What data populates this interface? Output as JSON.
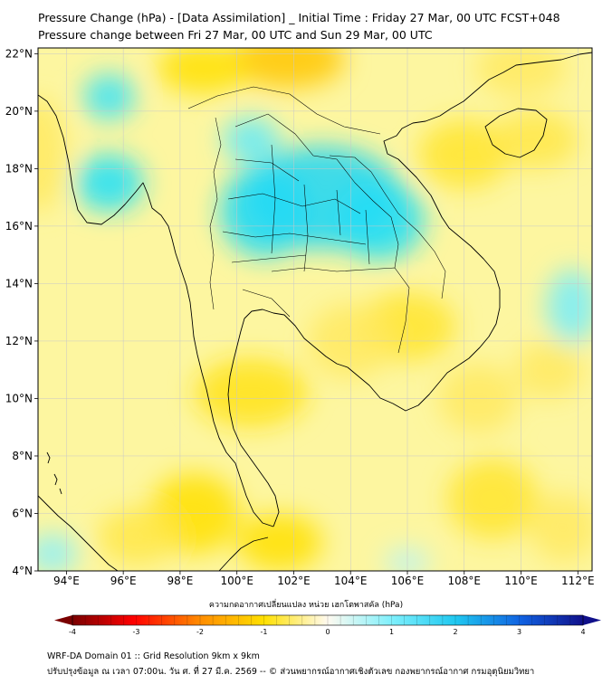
{
  "titles": {
    "line1": "Pressure Change (hPa) - [Data Assimilation] _ Initial Time : Friday 27 Mar, 00 UTC FCST+048",
    "line2": "Pressure change between Fri 27 Mar, 00 UTC and Sun 29 Mar, 00 UTC"
  },
  "map": {
    "lon_range": [
      93,
      112.5
    ],
    "lat_range": [
      4,
      22.2
    ],
    "lon_ticks": [
      {
        "v": 94,
        "label": "94°E"
      },
      {
        "v": 96,
        "label": "96°E"
      },
      {
        "v": 98,
        "label": "98°E"
      },
      {
        "v": 100,
        "label": "100°E"
      },
      {
        "v": 102,
        "label": "102°E"
      },
      {
        "v": 104,
        "label": "104°E"
      },
      {
        "v": 106,
        "label": "106°E"
      },
      {
        "v": 108,
        "label": "108°E"
      },
      {
        "v": 110,
        "label": "110°E"
      },
      {
        "v": 112,
        "label": "112°E"
      }
    ],
    "lat_ticks": [
      {
        "v": 4,
        "label": "4°N"
      },
      {
        "v": 6,
        "label": "6°N"
      },
      {
        "v": 8,
        "label": "8°N"
      },
      {
        "v": 10,
        "label": "10°N"
      },
      {
        "v": 12,
        "label": "12°N"
      },
      {
        "v": 14,
        "label": "14°N"
      },
      {
        "v": 16,
        "label": "16°N"
      },
      {
        "v": 18,
        "label": "18°N"
      },
      {
        "v": 20,
        "label": "20°N"
      },
      {
        "v": 22,
        "label": "22°N"
      }
    ],
    "grid": true,
    "field_blobs": [
      {
        "lon": 101.8,
        "lat": 21.8,
        "rlon": 2.0,
        "rlat": 1.0,
        "value": -1.3
      },
      {
        "lon": 98.8,
        "lat": 21.5,
        "rlon": 1.6,
        "rlat": 0.9,
        "value": -1.0
      },
      {
        "lon": 93.0,
        "lat": 18.5,
        "rlon": 1.0,
        "rlat": 2.0,
        "value": -0.6
      },
      {
        "lon": 100.5,
        "lat": 10.2,
        "rlon": 2.0,
        "rlat": 1.2,
        "value": -0.9
      },
      {
        "lon": 106.0,
        "lat": 12.5,
        "rlon": 1.7,
        "rlat": 1.2,
        "value": -0.8
      },
      {
        "lon": 104.0,
        "lat": 12.0,
        "rlon": 1.5,
        "rlat": 1.3,
        "value": -0.6
      },
      {
        "lon": 108.0,
        "lat": 18.5,
        "rlon": 1.6,
        "rlat": 1.2,
        "value": -0.8
      },
      {
        "lon": 110.5,
        "lat": 19.0,
        "rlon": 1.5,
        "rlat": 1.0,
        "value": -0.7
      },
      {
        "lon": 110.0,
        "lat": 21.5,
        "rlon": 1.6,
        "rlat": 1.0,
        "value": -0.6
      },
      {
        "lon": 98.5,
        "lat": 6.0,
        "rlon": 1.6,
        "rlat": 1.4,
        "value": -1.0
      },
      {
        "lon": 96.5,
        "lat": 5.2,
        "rlon": 1.4,
        "rlat": 1.0,
        "value": -0.7
      },
      {
        "lon": 101.5,
        "lat": 5.0,
        "rlon": 1.5,
        "rlat": 1.0,
        "value": -1.0
      },
      {
        "lon": 108.5,
        "lat": 10.0,
        "rlon": 1.4,
        "rlat": 1.2,
        "value": -0.6
      },
      {
        "lon": 111.0,
        "lat": 11.0,
        "rlon": 1.2,
        "rlat": 1.0,
        "value": -0.6
      },
      {
        "lon": 109.0,
        "lat": 6.5,
        "rlon": 1.6,
        "rlat": 1.4,
        "value": -0.8
      },
      {
        "lon": 111.5,
        "lat": 5.5,
        "rlon": 1.2,
        "rlat": 1.2,
        "value": -0.6
      },
      {
        "lon": 103.0,
        "lat": 17.0,
        "rlon": 2.8,
        "rlat": 1.8,
        "value": 1.4
      },
      {
        "lon": 101.0,
        "lat": 16.5,
        "rlon": 1.6,
        "rlat": 1.6,
        "value": 1.2
      },
      {
        "lon": 105.0,
        "lat": 16.2,
        "rlon": 1.6,
        "rlat": 1.4,
        "value": 1.1
      },
      {
        "lon": 95.5,
        "lat": 17.5,
        "rlon": 1.2,
        "rlat": 1.0,
        "value": 1.0
      },
      {
        "lon": 95.5,
        "lat": 20.5,
        "rlon": 0.9,
        "rlat": 0.8,
        "value": 0.9
      },
      {
        "lon": 100.5,
        "lat": 19.0,
        "rlon": 1.0,
        "rlat": 0.8,
        "value": 0.7
      },
      {
        "lon": 111.8,
        "lat": 13.2,
        "rlon": 0.9,
        "rlat": 1.3,
        "value": 0.6
      },
      {
        "lon": 93.5,
        "lat": 4.6,
        "rlon": 0.9,
        "rlat": 0.7,
        "value": 0.5
      },
      {
        "lon": 106.0,
        "lat": 4.3,
        "rlon": 0.8,
        "rlat": 0.5,
        "value": 0.3
      }
    ]
  },
  "colorbar": {
    "label": "ความกดอากาศเปลี่ยนแปลง หน่วย เฮกโตพาสคัล (hPa)",
    "vmin": -4,
    "vmax": 4,
    "ticks": [
      {
        "v": -4,
        "label": "-4"
      },
      {
        "v": -3,
        "label": "-3"
      },
      {
        "v": -2,
        "label": "-2"
      },
      {
        "v": -1,
        "label": "-1"
      },
      {
        "v": 0,
        "label": "0"
      },
      {
        "v": 1,
        "label": "1"
      },
      {
        "v": 2,
        "label": "2"
      },
      {
        "v": 3,
        "label": "3"
      },
      {
        "v": 4,
        "label": "4"
      }
    ],
    "colors": {
      "neg_dark": "#7a0000",
      "neg_red": "#ff0000",
      "neg_orange": "#ff8c00",
      "neg_yellow": "#ffe000",
      "neutral": "#fffaf0",
      "pos_cyan": "#20e0f8",
      "pos_blue": "#1060e0",
      "pos_dark": "#10108a"
    }
  },
  "footer": {
    "line1": "WRF-DA Domain 01 :: Grid Resolution 9km x 9km",
    "line2": "ปรับปรุงข้อมูล ณ เวลา 07:00น. วัน ศ. ที่ 27 มี.ค. 2569 -- © ส่วนพยากรณ์อากาศเชิงตัวเลข กองพยากรณ์อากาศ กรมอุตุนิยมวิทยา"
  }
}
